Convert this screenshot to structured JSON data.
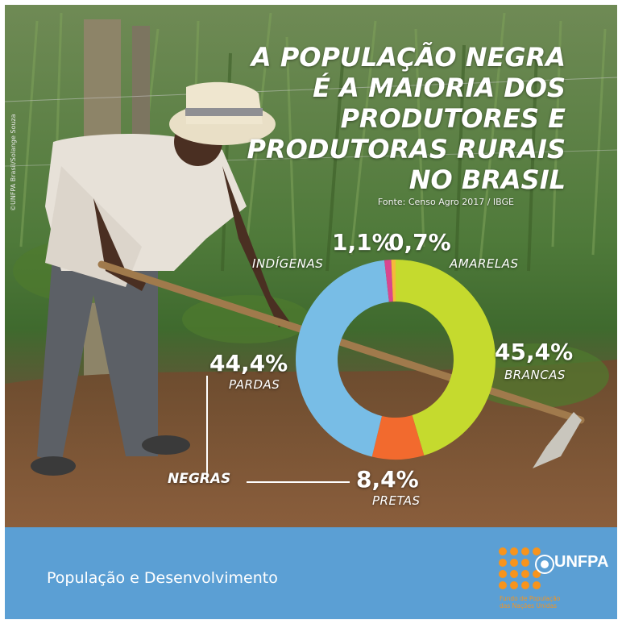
{
  "headline_lines": [
    "A POPULAÇÃO NEGRA",
    "É A MAIORIA DOS",
    "PRODUTORES E",
    "PRODUTORAS RURAIS",
    "NO BRASIL"
  ],
  "source": "Fonte: Censo Agro 2017 / IBGE",
  "photo_credit": "©UNFPA Brasil/Solange Souza",
  "group_label": "NEGRAS",
  "footer": {
    "title": "População e Desenvolvimento",
    "brand": "UNFPA",
    "brand_tagline_1": "Fundo de População",
    "brand_tagline_2": "das Nações Unidas"
  },
  "colors": {
    "brancas": "#c5da2e",
    "pretas": "#f26a2e",
    "pardas": "#78bde6",
    "indigenas": "#d9468f",
    "amarelas": "#f6b93b",
    "footer": "#5b9fd4",
    "unfpa_orange": "#f7941d"
  },
  "chart_data": {
    "type": "pie",
    "variant": "donut",
    "title": "A POPULAÇÃO NEGRA É A MAIORIA DOS PRODUTORES E PRODUTORAS RURAIS NO BRASIL",
    "unit": "%",
    "slices": [
      {
        "label": "BRANCAS",
        "value": 45.4,
        "value_text": "45,4%",
        "color": "#c5da2e"
      },
      {
        "label": "PRETAS",
        "value": 8.4,
        "value_text": "8,4%",
        "color": "#f26a2e"
      },
      {
        "label": "PARDAS",
        "value": 44.4,
        "value_text": "44,4%",
        "color": "#78bde6"
      },
      {
        "label": "INDÍGENAS",
        "value": 1.1,
        "value_text": "1,1%",
        "color": "#d9468f"
      },
      {
        "label": "AMARELAS",
        "value": 0.7,
        "value_text": "0,7%",
        "color": "#f6b93b"
      }
    ]
  }
}
